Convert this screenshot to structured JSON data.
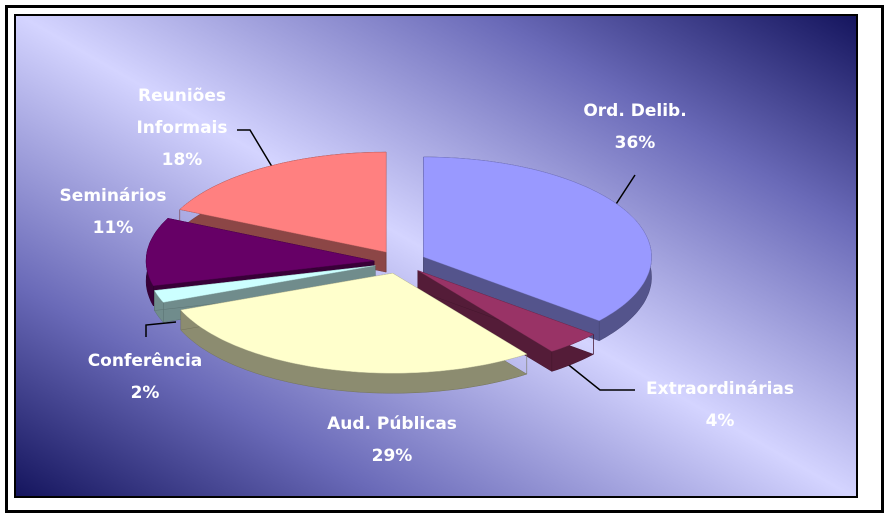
{
  "chart_data": {
    "type": "pie",
    "categories": [
      "Ord. Delib.",
      "Extraordinárias",
      "Aud. Públicas",
      "Conferência",
      "Seminários",
      "Reuniões Informais"
    ],
    "values": [
      36,
      4,
      29,
      2,
      11,
      18
    ],
    "value_labels": [
      "36%",
      "4%",
      "29%",
      "2%",
      "11%",
      "18%"
    ],
    "colors": [
      "#9999ff",
      "#993366",
      "#ffffcc",
      "#ccffff",
      "#660066",
      "#ff8080"
    ]
  }
}
